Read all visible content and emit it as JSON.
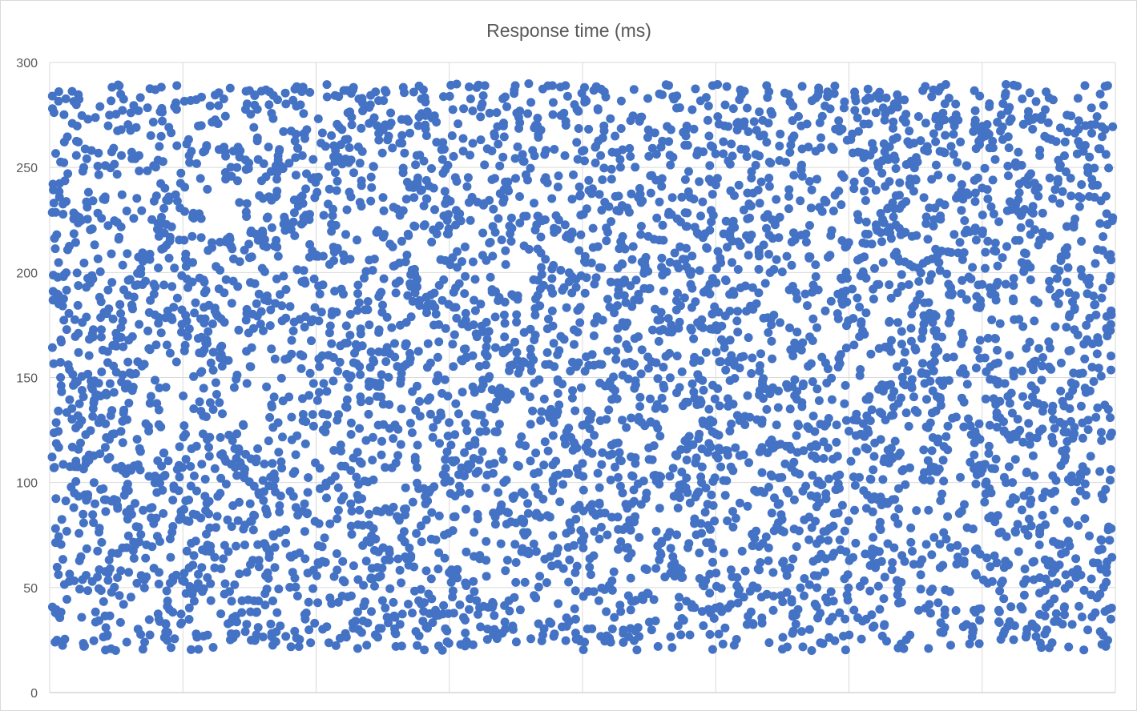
{
  "chart_data": {
    "type": "scatter",
    "title": "Response time (ms)",
    "xlabel": "",
    "ylabel": "",
    "ylim": [
      0,
      300
    ],
    "y_ticks": [
      0,
      50,
      100,
      150,
      200,
      250,
      300
    ],
    "y_tick_labels": [
      "0",
      "50",
      "100",
      "150",
      "200",
      "250",
      "300"
    ],
    "x_axis_labels_shown": false,
    "x_gridline_count": 8,
    "grid": true,
    "legend": "none",
    "marker_color": "#4472c4",
    "marker_shape": "circle",
    "point_count": 5000,
    "x_range_points": [
      0,
      5000
    ],
    "y_distribution": "approximately uniform between 20 and 290",
    "sample_points": [
      {
        "x": 1,
        "y": 284
      },
      {
        "x": 2,
        "y": 278
      },
      {
        "x": 5,
        "y": 191
      },
      {
        "x": 9,
        "y": 107
      },
      {
        "x": 14,
        "y": 24
      },
      {
        "x": 22,
        "y": 218
      },
      {
        "x": 40,
        "y": 150
      },
      {
        "x": 95,
        "y": 271
      },
      {
        "x": 150,
        "y": 22
      },
      {
        "x": 250,
        "y": 236
      },
      {
        "x": 300,
        "y": 20
      },
      {
        "x": 352,
        "y": 24
      },
      {
        "x": 436,
        "y": 24
      },
      {
        "x": 588,
        "y": 289
      },
      {
        "x": 780,
        "y": 271
      },
      {
        "x": 1025,
        "y": 286
      },
      {
        "x": 1418,
        "y": 287
      },
      {
        "x": 1596,
        "y": 276
      },
      {
        "x": 1750,
        "y": 287
      },
      {
        "x": 2040,
        "y": 289
      },
      {
        "x": 2183,
        "y": 289
      },
      {
        "x": 2420,
        "y": 289
      },
      {
        "x": 2510,
        "y": 24
      },
      {
        "x": 3113,
        "y": 289
      },
      {
        "x": 3368,
        "y": 289
      },
      {
        "x": 3580,
        "y": 20
      },
      {
        "x": 3835,
        "y": 282
      },
      {
        "x": 4372,
        "y": 284
      },
      {
        "x": 4685,
        "y": 286
      },
      {
        "x": 4868,
        "y": 289
      },
      {
        "x": 4948,
        "y": 23
      },
      {
        "x": 4975,
        "y": 289
      },
      {
        "x": 4985,
        "y": 196
      },
      {
        "x": 4990,
        "y": 35
      }
    ]
  }
}
